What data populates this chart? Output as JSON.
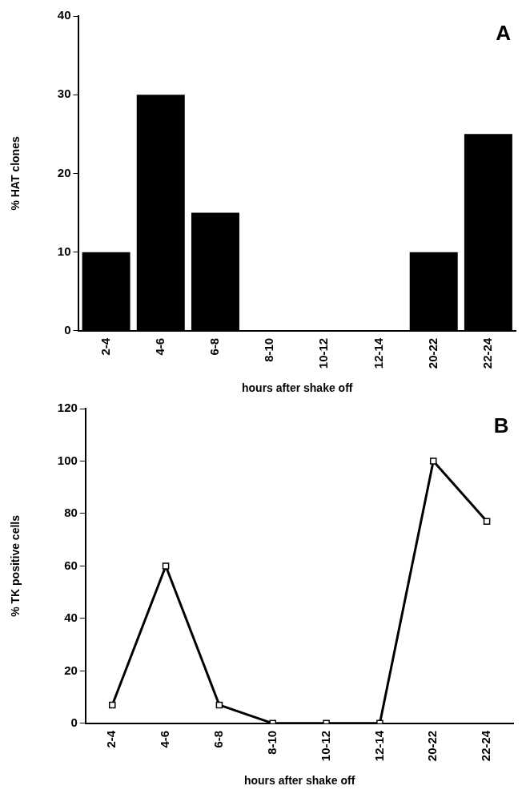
{
  "chart_data": [
    {
      "type": "bar",
      "categories": [
        "2-4",
        "4-6",
        "6-8",
        "8-10",
        "10-12",
        "12-14",
        "20-22",
        "22-24"
      ],
      "values": [
        10,
        30,
        15,
        0,
        0,
        0,
        10,
        25
      ],
      "color": "#000000",
      "ylabel": "% HAT clones",
      "xlabel": "hours after shake off",
      "ylim": [
        0,
        40
      ],
      "yticks": [
        0,
        10,
        20,
        30,
        40
      ],
      "grid": false,
      "legend": false,
      "annotations": [
        "A"
      ]
    },
    {
      "type": "line",
      "categories": [
        "2-4",
        "4-6",
        "6-8",
        "8-10",
        "10-12",
        "12-14",
        "20-22",
        "22-24"
      ],
      "values": [
        7,
        60,
        7,
        0,
        0,
        0,
        100,
        77
      ],
      "color": "#000000",
      "marker": "square",
      "line_style": "solid",
      "ylabel": "% TK positive cells",
      "xlabel": "hours after shake off",
      "ylim": [
        0,
        120
      ],
      "yticks": [
        0,
        20,
        40,
        60,
        80,
        100,
        120
      ],
      "grid": false,
      "legend": false,
      "annotations": [
        "B"
      ]
    }
  ]
}
